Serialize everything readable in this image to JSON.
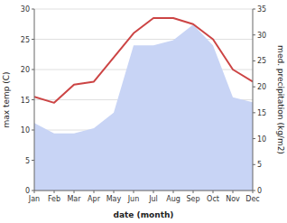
{
  "chart_data": {
    "type": "line",
    "categories": [
      "Jan",
      "Feb",
      "Mar",
      "Apr",
      "May",
      "Jun",
      "Jul",
      "Aug",
      "Sep",
      "Oct",
      "Nov",
      "Dec"
    ],
    "series": [
      {
        "type": "area",
        "axis": "y2",
        "color": "#c8d4f5",
        "values": [
          13.0,
          11.0,
          11.0,
          12.0,
          15.0,
          28.0,
          28.0,
          29.0,
          32.0,
          28.0,
          18.0,
          17.0
        ]
      },
      {
        "type": "line",
        "color": "#cc4444",
        "values": [
          15.5,
          14.5,
          17.5,
          18.0,
          22.0,
          26.0,
          28.5,
          28.5,
          27.5,
          25.0,
          20.0,
          18.0
        ]
      }
    ],
    "xlabel": "date (month)",
    "ylabel": "max temp (C)",
    "y2label": "med. precipitation (kg/m2)",
    "ylim": [
      0,
      30
    ],
    "yticks": [
      0,
      5,
      10,
      15,
      20,
      25,
      30
    ],
    "y2lim": [
      0,
      35
    ],
    "y2ticks": [
      0,
      5,
      10,
      15,
      20,
      25,
      30,
      35
    ],
    "grid": true
  }
}
